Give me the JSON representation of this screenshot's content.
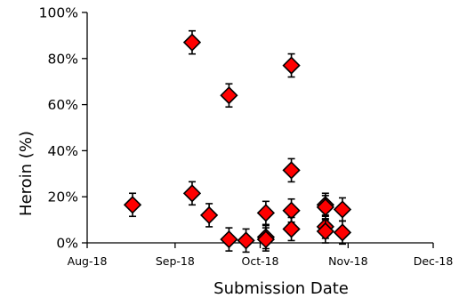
{
  "chart_data": {
    "type": "scatter",
    "title": "",
    "xlabel": "Submission Date",
    "ylabel": "Heroin (%)",
    "xlim": [
      "2018-08-01",
      "2018-12-01"
    ],
    "ylim": [
      0,
      100
    ],
    "grid": false,
    "legend": "none",
    "x_ticks": [
      {
        "date": "2018-08-01",
        "label": "Aug-18"
      },
      {
        "date": "2018-09-01",
        "label": "Sep-18"
      },
      {
        "date": "2018-10-01",
        "label": "Oct-18"
      },
      {
        "date": "2018-11-01",
        "label": "Nov-18"
      },
      {
        "date": "2018-12-01",
        "label": "Dec-18"
      }
    ],
    "y_ticks": [
      {
        "value": 0,
        "label": "0%"
      },
      {
        "value": 20,
        "label": "20%"
      },
      {
        "value": 40,
        "label": "40%"
      },
      {
        "value": 60,
        "label": "60%"
      },
      {
        "value": 80,
        "label": "80%"
      },
      {
        "value": 100,
        "label": "100%"
      }
    ],
    "marker_color": "#ff0000",
    "marker_edge_color": "#000000",
    "marker_shape": "diamond",
    "points": [
      {
        "x": "2018-08-17",
        "y": 16.5
      },
      {
        "x": "2018-09-07",
        "y": 87
      },
      {
        "x": "2018-09-07",
        "y": 21.5
      },
      {
        "x": "2018-09-13",
        "y": 12
      },
      {
        "x": "2018-09-20",
        "y": 64
      },
      {
        "x": "2018-09-20",
        "y": 1.5
      },
      {
        "x": "2018-09-26",
        "y": 1
      },
      {
        "x": "2018-10-03",
        "y": 13
      },
      {
        "x": "2018-10-03",
        "y": 2.5
      },
      {
        "x": "2018-10-03",
        "y": 1.5
      },
      {
        "x": "2018-10-12",
        "y": 77
      },
      {
        "x": "2018-10-12",
        "y": 31.5
      },
      {
        "x": "2018-10-12",
        "y": 14
      },
      {
        "x": "2018-10-12",
        "y": 6
      },
      {
        "x": "2018-10-24",
        "y": 16.5
      },
      {
        "x": "2018-10-24",
        "y": 15.5
      },
      {
        "x": "2018-10-24",
        "y": 7
      },
      {
        "x": "2018-10-24",
        "y": 5
      },
      {
        "x": "2018-10-30",
        "y": 14.5
      },
      {
        "x": "2018-10-30",
        "y": 4.5
      }
    ]
  }
}
